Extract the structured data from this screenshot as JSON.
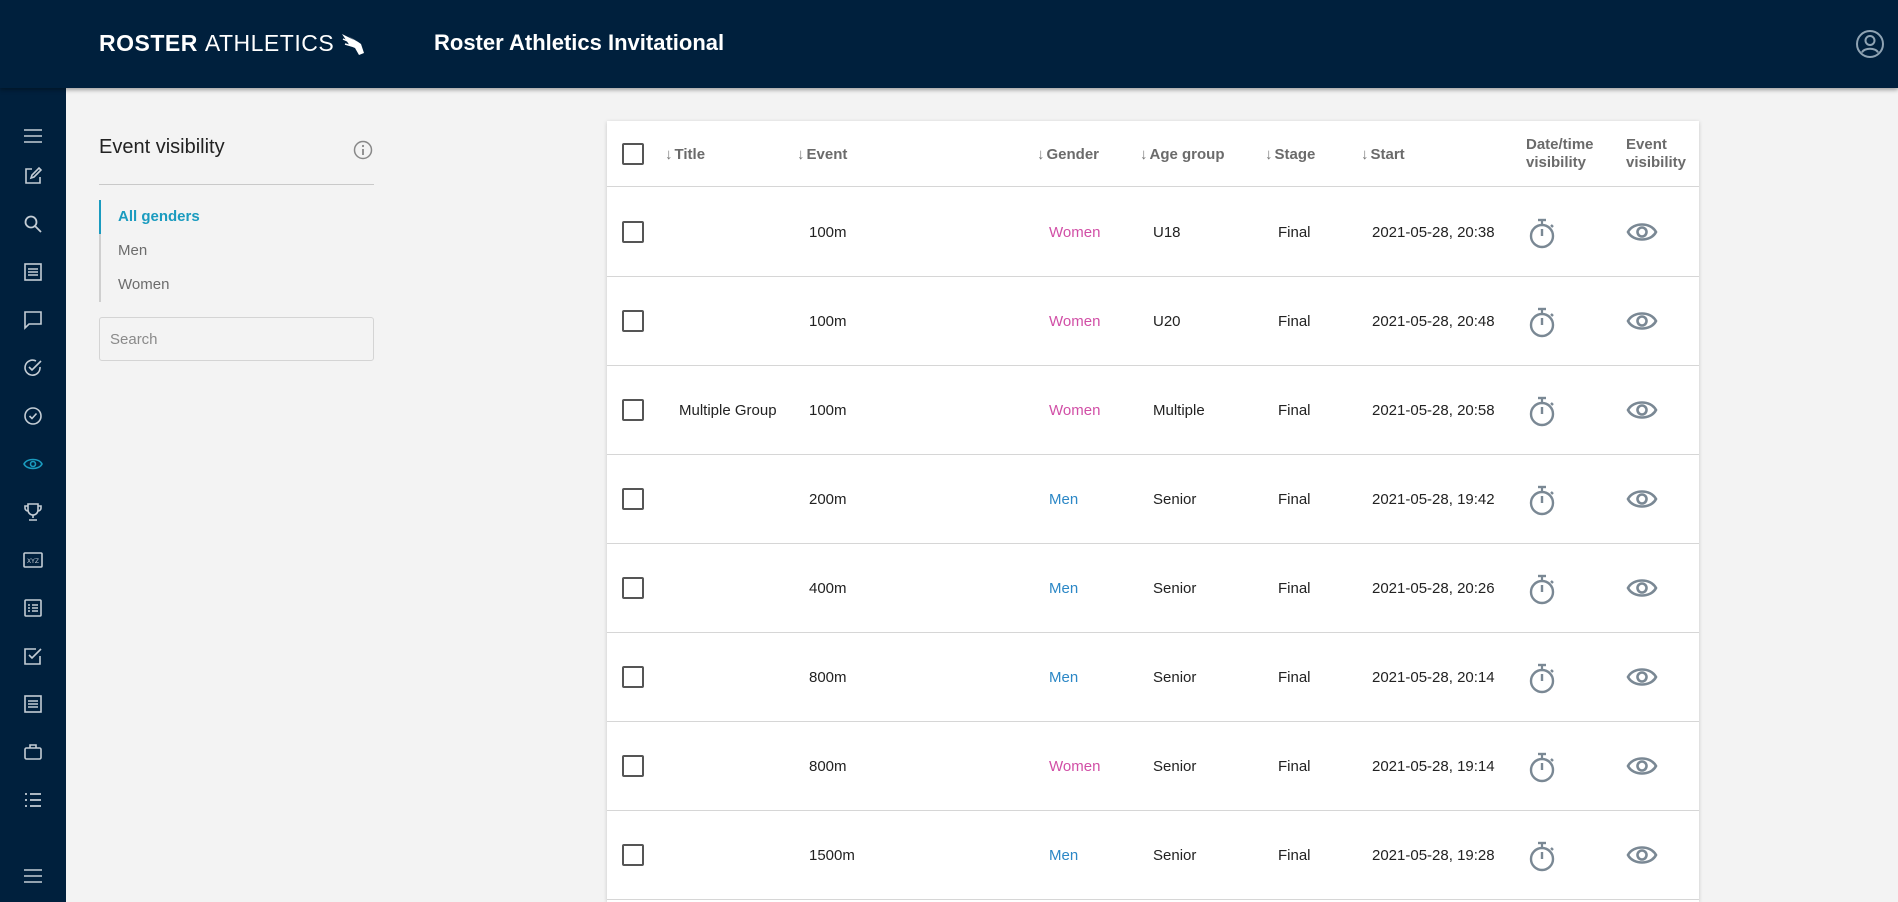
{
  "header": {
    "logo_bold": "ROSTER",
    "logo_light": "ATHLETICS",
    "title": "Roster Athletics Invitational",
    "icons": {
      "logo_mark": "winged-shoe-icon",
      "user": "user-circle-icon"
    }
  },
  "sidebar": {
    "items": [
      {
        "icon": "menu-icon"
      },
      {
        "icon": "edit-icon"
      },
      {
        "icon": "search-icon"
      },
      {
        "icon": "list-icon"
      },
      {
        "icon": "message-icon"
      },
      {
        "icon": "check-circle-icon"
      },
      {
        "icon": "check-circle-outline-icon"
      },
      {
        "icon": "eye-icon",
        "active": true
      },
      {
        "icon": "trophy-icon"
      },
      {
        "icon": "xyz-icon"
      },
      {
        "icon": "document-list-icon"
      },
      {
        "icon": "checkbox-icon"
      },
      {
        "icon": "document-icon"
      },
      {
        "icon": "briefcase-icon"
      },
      {
        "icon": "bullet-list-icon"
      },
      {
        "icon": "menu-bottom-icon"
      }
    ],
    "active_color": "#1a9bbf"
  },
  "panel": {
    "title": "Event visibility",
    "genders": [
      "All genders",
      "Men",
      "Women"
    ],
    "active_gender": "All genders",
    "search_placeholder": "Search",
    "search_value": ""
  },
  "table": {
    "columns": {
      "title": "Title",
      "event": "Event",
      "gender": "Gender",
      "age_group": "Age group",
      "stage": "Stage",
      "start": "Start",
      "datetime_visibility_1": "Date/time",
      "datetime_visibility_2": "visibility",
      "event_visibility_1": "Event",
      "event_visibility_2": "visibility"
    },
    "rows": [
      {
        "title": "",
        "event": "100m",
        "gender": "Women",
        "age_group": "U18",
        "stage": "Final",
        "start": "2021-05-28, 20:38"
      },
      {
        "title": "",
        "event": "100m",
        "gender": "Women",
        "age_group": "U20",
        "stage": "Final",
        "start": "2021-05-28, 20:48"
      },
      {
        "title": "Multiple Group",
        "event": "100m",
        "gender": "Women",
        "age_group": "Multiple",
        "stage": "Final",
        "start": "2021-05-28, 20:58"
      },
      {
        "title": "",
        "event": "200m",
        "gender": "Men",
        "age_group": "Senior",
        "stage": "Final",
        "start": "2021-05-28, 19:42"
      },
      {
        "title": "",
        "event": "400m",
        "gender": "Men",
        "age_group": "Senior",
        "stage": "Final",
        "start": "2021-05-28, 20:26"
      },
      {
        "title": "",
        "event": "800m",
        "gender": "Men",
        "age_group": "Senior",
        "stage": "Final",
        "start": "2021-05-28, 20:14"
      },
      {
        "title": "",
        "event": "800m",
        "gender": "Women",
        "age_group": "Senior",
        "stage": "Final",
        "start": "2021-05-28, 19:14"
      },
      {
        "title": "",
        "event": "1500m",
        "gender": "Men",
        "age_group": "Senior",
        "stage": "Final",
        "start": "2021-05-28, 19:28"
      }
    ],
    "colors": {
      "women": "#d14fa6",
      "men": "#2b87c6",
      "icon": "#7a8894"
    }
  }
}
